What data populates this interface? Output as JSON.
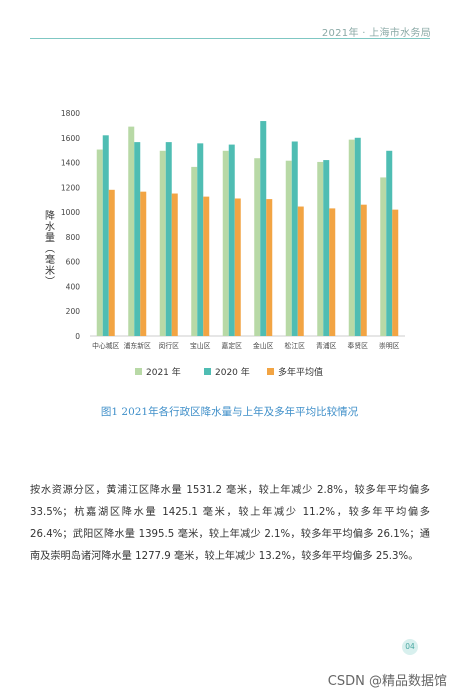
{
  "header": {
    "title": "2021年 · 上海市水务局"
  },
  "chart_data": {
    "type": "bar",
    "categories": [
      "中心城区",
      "浦东新区",
      "闵行区",
      "宝山区",
      "嘉定区",
      "金山区",
      "松江区",
      "青浦区",
      "奉贤区",
      "崇明区"
    ],
    "series": [
      {
        "name": "2021 年",
        "color": "#b8d9a6",
        "values": [
          1505,
          1690,
          1495,
          1365,
          1495,
          1435,
          1415,
          1405,
          1585,
          1280
        ]
      },
      {
        "name": "2020 年",
        "color": "#4fbdb3",
        "values": [
          1620,
          1565,
          1565,
          1555,
          1545,
          1735,
          1570,
          1420,
          1600,
          1495
        ]
      },
      {
        "name": "多年平均值",
        "color": "#f2a443",
        "values": [
          1180,
          1165,
          1150,
          1125,
          1110,
          1105,
          1045,
          1030,
          1060,
          1020
        ]
      }
    ],
    "ylabel": "降水量（毫米）",
    "ylim": [
      0,
      1800
    ],
    "yticks": [
      0,
      200,
      400,
      600,
      800,
      1000,
      1200,
      1400,
      1600,
      1800
    ],
    "grid": false,
    "legend": "bottom"
  },
  "caption": "图1    2021年各行政区降水量与上年及多年平均比较情况",
  "paragraph": "按水资源分区，黄浦江区降水量 1531.2 毫米，较上年减少 2.8%，较多年平均偏多 33.5%；杭嘉湖区降水量 1425.1 毫米，较上年减少 11.2%，较多年平均偏多 26.4%；武阳区降水量 1395.5 毫米，较上年减少 2.1%，较多年平均偏多 26.1%；通南及崇明岛诸河降水量 1277.9 毫米，较上年减少 13.2%，较多年平均偏多 25.3%。",
  "page_number": "04",
  "watermark": "CSDN @精品数据馆"
}
